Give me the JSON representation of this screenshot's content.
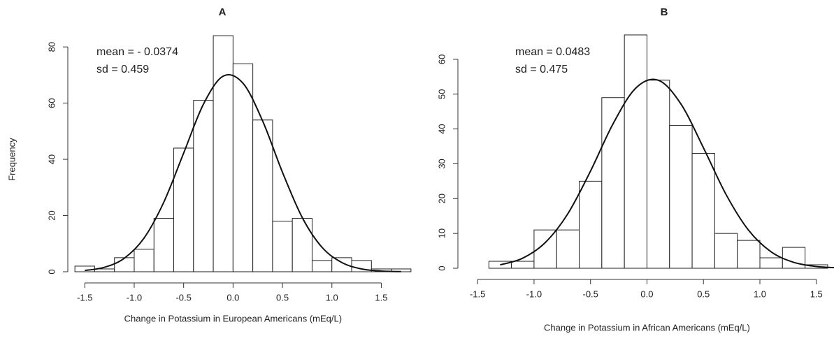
{
  "chart_data": [
    {
      "type": "histogram",
      "title": "A",
      "xlabel": "Change in Potassium in European Americans (mEq/L)",
      "ylabel": "Frequency",
      "annotations": [
        "mean = - 0.0374",
        "sd = 0.459"
      ],
      "bins": [
        -1.6,
        -1.4,
        -1.2,
        -1.0,
        -0.8,
        -0.6,
        -0.4,
        -0.2,
        0.0,
        0.2,
        0.4,
        0.6,
        0.8,
        1.0,
        1.2,
        1.4,
        1.6,
        1.8
      ],
      "values": [
        2,
        1,
        5,
        8,
        19,
        44,
        61,
        84,
        74,
        54,
        18,
        19,
        4,
        5,
        4,
        1,
        1
      ],
      "curve": {
        "x": [
          -1.5,
          -1.3,
          -1.1,
          -0.9,
          -0.7,
          -0.5,
          -0.3,
          -0.1,
          0.1,
          0.3,
          0.5,
          0.7,
          0.9,
          1.1,
          1.3,
          1.5,
          1.7
        ],
        "values": [
          0.44,
          1.6,
          4.8,
          12.0,
          24.8,
          42.2,
          59.6,
          69.6,
          67.1,
          53.6,
          35.4,
          19.3,
          8.7,
          3.3,
          1.0,
          0.26,
          0.05
        ]
      },
      "xlim": [
        -1.7,
        1.9
      ],
      "ylim": [
        0,
        88
      ],
      "xticks": [
        -1.5,
        {
          "value": -1.0,
          "label": "-1.0"
        },
        -0.5,
        {
          "value": 0.0,
          "label": "0.0"
        },
        0.5,
        {
          "value": 1.0,
          "label": "1.0"
        },
        1.5
      ],
      "yticks": [
        0,
        20,
        40,
        60,
        80
      ]
    },
    {
      "type": "histogram",
      "title": "B",
      "xlabel": "Change in Potassium in African Americans (mEq/L)",
      "annotations": [
        "mean = 0.0483",
        "sd = 0.475"
      ],
      "bins": [
        -1.4,
        -1.2,
        -1.0,
        -0.8,
        -0.6,
        -0.4,
        -0.2,
        0.0,
        0.2,
        0.4,
        0.6,
        0.8,
        1.0,
        1.2,
        1.4,
        1.6
      ],
      "values": [
        2,
        2,
        11,
        11,
        25,
        49,
        67,
        54,
        41,
        33,
        10,
        8,
        3,
        6,
        1
      ],
      "curve": {
        "x": [
          -1.3,
          -1.1,
          -0.9,
          -0.7,
          -0.5,
          -0.3,
          -0.1,
          0.1,
          0.3,
          0.5,
          0.7,
          0.9,
          1.1,
          1.3,
          1.5,
          1.7
        ],
        "values": [
          0.97,
          2.9,
          7.4,
          15.7,
          27.9,
          41.5,
          51.7,
          54.0,
          47.2,
          34.6,
          21.2,
          10.9,
          4.7,
          1.7,
          0.5,
          0.13
        ]
      },
      "xlim": [
        -1.6,
        1.65
      ],
      "ylim": [
        0,
        68
      ],
      "xticks": [
        -1.5,
        {
          "value": -1.0,
          "label": "-1.0"
        },
        -0.5,
        {
          "value": 0.0,
          "label": "0.0"
        },
        0.5,
        {
          "value": 1.0,
          "label": "1.0"
        },
        1.5
      ],
      "yticks": [
        0,
        10,
        20,
        30,
        40,
        50,
        60
      ]
    }
  ]
}
